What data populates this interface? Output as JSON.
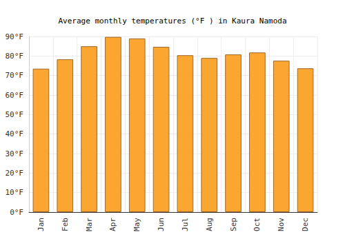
{
  "chart_data": {
    "type": "bar",
    "title": "Average monthly temperatures (°F ) in Kaura Namoda",
    "categories": [
      "Jan",
      "Feb",
      "Mar",
      "Apr",
      "May",
      "Jun",
      "Jul",
      "Aug",
      "Sep",
      "Oct",
      "Nov",
      "Dec"
    ],
    "values": [
      73.5,
      78.3,
      85,
      89.8,
      89,
      84.7,
      80.4,
      79,
      80.8,
      81.8,
      77.6,
      73.7
    ],
    "color": "#fca632",
    "ylim": [
      0,
      90
    ],
    "yticks": [
      {
        "value": 0,
        "label": "0°F"
      },
      {
        "value": 10,
        "label": "10°F"
      },
      {
        "value": 20,
        "label": "20°F"
      },
      {
        "value": 30,
        "label": "30°F"
      },
      {
        "value": 40,
        "label": "40°F"
      },
      {
        "value": 50,
        "label": "50°F"
      },
      {
        "value": 60,
        "label": "60°F"
      },
      {
        "value": 70,
        "label": "70°F"
      },
      {
        "value": 80,
        "label": "80°F"
      },
      {
        "value": 90,
        "label": "90°F"
      }
    ],
    "grid": true
  }
}
